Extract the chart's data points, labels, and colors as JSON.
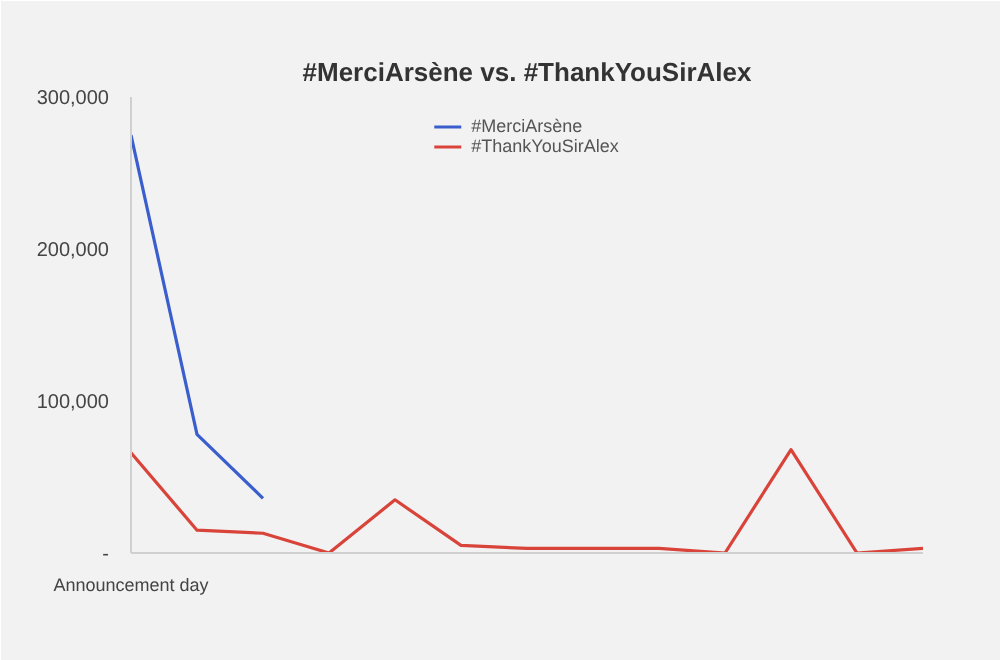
{
  "chart_data": {
    "type": "line",
    "title": "#MerciArsène vs. #ThankYouSirAlex",
    "categories": [
      "Announcement day",
      null,
      null,
      null,
      null,
      null,
      null,
      null,
      null,
      null,
      null,
      null,
      null
    ],
    "series": [
      {
        "name": "#MerciArsène",
        "color": "#3a5fcd",
        "values": [
          275000,
          78000,
          36000,
          null,
          null,
          null,
          null,
          null,
          null,
          null,
          null,
          null,
          null
        ]
      },
      {
        "name": "#ThankYouSirAlex",
        "color": "#d9443a",
        "values": [
          66000,
          15000,
          13000,
          0,
          35000,
          5000,
          3000,
          3000,
          3000,
          0,
          68000,
          0,
          3000
        ]
      }
    ],
    "ylim": [
      0,
      300000
    ],
    "yticks": [
      {
        "value": 0,
        "label": "-"
      },
      {
        "value": 100000,
        "label": "100,000"
      },
      {
        "value": 200000,
        "label": "200,000"
      },
      {
        "value": 300000,
        "label": "300,000"
      }
    ],
    "grid": false,
    "legend": "top",
    "marker": "none",
    "line_style": "solid"
  }
}
